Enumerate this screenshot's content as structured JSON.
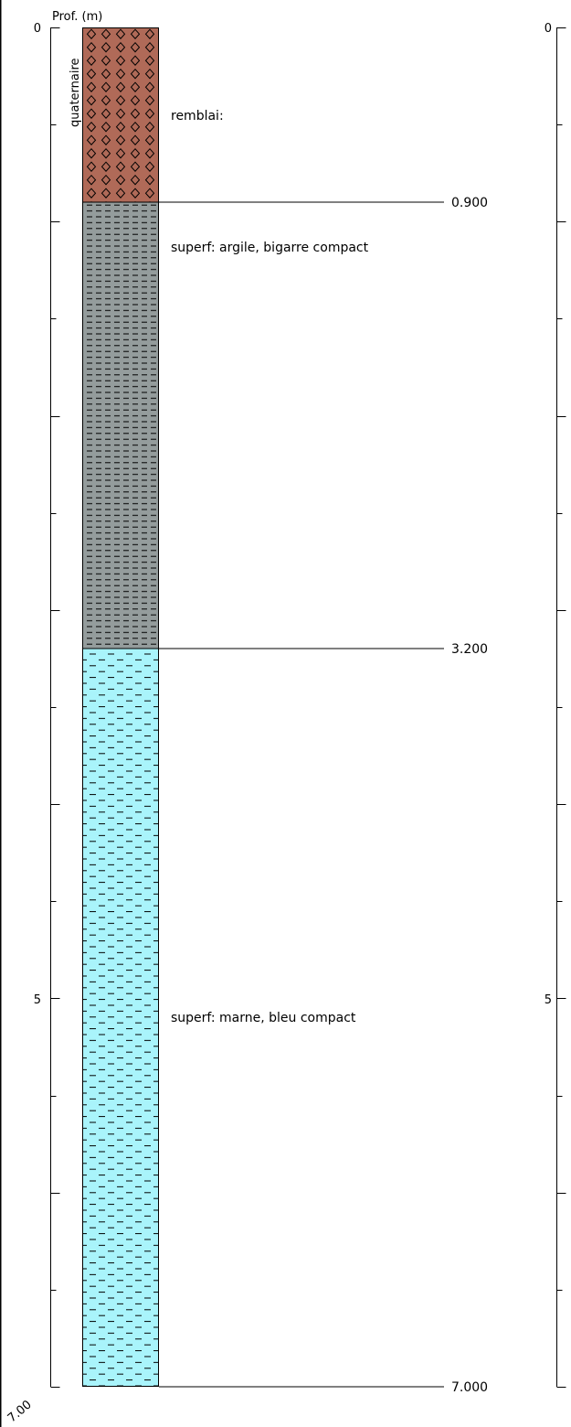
{
  "depth_axis": {
    "title": "Prof. (m)",
    "major_labels": [
      "0",
      "5"
    ],
    "bottom_label": "7.00"
  },
  "right_axis": {
    "major_labels": [
      "0",
      "5"
    ]
  },
  "stratigraphy": {
    "label": "quaternaire"
  },
  "layers": [
    {
      "top": 0.0,
      "bottom": 0.9,
      "description": "remblai:",
      "pattern": "diamond-fill",
      "color": "#b06a58"
    },
    {
      "top": 0.9,
      "bottom": 3.2,
      "description": "superf: argile, bigarre compact",
      "pattern": "dense-dashes",
      "color": "#949c9c"
    },
    {
      "top": 3.2,
      "bottom": 7.0,
      "description": "superf: marne, bleu compact",
      "pattern": "sparse-dashes",
      "color": "#a9f4fb"
    }
  ],
  "depth_marks": [
    "0.900",
    "3.200",
    "7.000"
  ],
  "total_depth": 7.0
}
